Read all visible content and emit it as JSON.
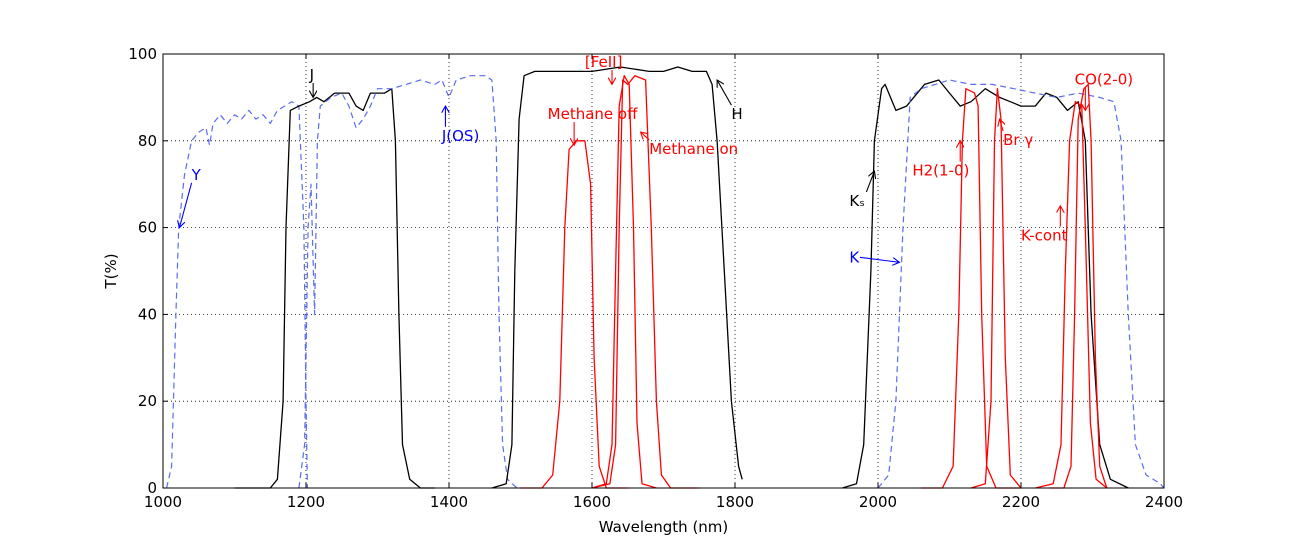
{
  "chart_data": {
    "type": "line",
    "xlabel": "Wavelength (nm)",
    "ylabel": "T(%)",
    "xlim": [
      1000,
      2400
    ],
    "ylim": [
      0,
      100
    ],
    "xticks": [
      1000,
      1200,
      1400,
      1600,
      1800,
      2000,
      2200,
      2400
    ],
    "yticks": [
      0,
      20,
      40,
      60,
      80,
      100
    ],
    "grid": true,
    "colors": {
      "black": "#000000",
      "red": "#ff0000",
      "blue": "#0000ff",
      "dashed_blue": "#5b6cf0"
    },
    "series": [
      {
        "name": "Y",
        "color": "#5b6cf0",
        "dashed": true,
        "points": [
          [
            1005,
            0
          ],
          [
            1012,
            5
          ],
          [
            1018,
            40
          ],
          [
            1022,
            60
          ],
          [
            1030,
            72
          ],
          [
            1040,
            80
          ],
          [
            1050,
            82
          ],
          [
            1060,
            83
          ],
          [
            1065,
            79
          ],
          [
            1070,
            84
          ],
          [
            1080,
            86
          ],
          [
            1090,
            84
          ],
          [
            1100,
            86
          ],
          [
            1110,
            85
          ],
          [
            1120,
            87
          ],
          [
            1130,
            85
          ],
          [
            1140,
            86
          ],
          [
            1150,
            84
          ],
          [
            1160,
            87
          ],
          [
            1170,
            88
          ],
          [
            1180,
            89
          ],
          [
            1190,
            88
          ],
          [
            1197,
            60
          ],
          [
            1200,
            20
          ],
          [
            1202,
            0
          ]
        ]
      },
      {
        "name": "J",
        "color": "#000000",
        "dashed": false,
        "points": [
          [
            1100,
            0
          ],
          [
            1150,
            0
          ],
          [
            1160,
            2
          ],
          [
            1168,
            20
          ],
          [
            1172,
            60
          ],
          [
            1178,
            87
          ],
          [
            1190,
            88
          ],
          [
            1205,
            89
          ],
          [
            1215,
            90
          ],
          [
            1225,
            89
          ],
          [
            1240,
            91
          ],
          [
            1260,
            91
          ],
          [
            1270,
            88
          ],
          [
            1280,
            87
          ],
          [
            1290,
            91
          ],
          [
            1310,
            91
          ],
          [
            1320,
            92
          ],
          [
            1325,
            80
          ],
          [
            1330,
            40
          ],
          [
            1335,
            10
          ],
          [
            1345,
            2
          ],
          [
            1360,
            0
          ],
          [
            1380,
            0
          ]
        ]
      },
      {
        "name": "J(OS)",
        "color": "#5b6cf0",
        "dashed": true,
        "points": [
          [
            1190,
            0
          ],
          [
            1198,
            10
          ],
          [
            1203,
            60
          ],
          [
            1207,
            70
          ],
          [
            1212,
            40
          ],
          [
            1216,
            80
          ],
          [
            1220,
            88
          ],
          [
            1235,
            90
          ],
          [
            1250,
            91
          ],
          [
            1260,
            88
          ],
          [
            1270,
            83
          ],
          [
            1280,
            85
          ],
          [
            1290,
            88
          ],
          [
            1300,
            92
          ],
          [
            1320,
            92
          ],
          [
            1340,
            93
          ],
          [
            1360,
            94
          ],
          [
            1380,
            93
          ],
          [
            1390,
            94
          ],
          [
            1400,
            90
          ],
          [
            1410,
            94
          ],
          [
            1430,
            95
          ],
          [
            1450,
            95
          ],
          [
            1460,
            94
          ],
          [
            1466,
            80
          ],
          [
            1470,
            40
          ],
          [
            1475,
            10
          ],
          [
            1482,
            2
          ],
          [
            1495,
            0
          ]
        ]
      },
      {
        "name": "H",
        "color": "#000000",
        "dashed": false,
        "points": [
          [
            1460,
            0
          ],
          [
            1480,
            1
          ],
          [
            1488,
            10
          ],
          [
            1492,
            50
          ],
          [
            1498,
            85
          ],
          [
            1505,
            95
          ],
          [
            1520,
            96
          ],
          [
            1560,
            96
          ],
          [
            1600,
            96
          ],
          [
            1640,
            97
          ],
          [
            1680,
            96
          ],
          [
            1700,
            96
          ],
          [
            1720,
            97
          ],
          [
            1740,
            96
          ],
          [
            1760,
            96
          ],
          [
            1768,
            93
          ],
          [
            1775,
            80
          ],
          [
            1785,
            50
          ],
          [
            1795,
            20
          ],
          [
            1805,
            5
          ],
          [
            1810,
            2
          ]
        ]
      },
      {
        "name": "Methane off",
        "color": "#ff0000",
        "dashed": false,
        "points": [
          [
            1500,
            0
          ],
          [
            1530,
            0
          ],
          [
            1545,
            3
          ],
          [
            1555,
            20
          ],
          [
            1562,
            60
          ],
          [
            1568,
            78
          ],
          [
            1578,
            80
          ],
          [
            1590,
            80
          ],
          [
            1598,
            70
          ],
          [
            1603,
            30
          ],
          [
            1610,
            5
          ],
          [
            1620,
            0
          ],
          [
            1650,
            0
          ]
        ]
      },
      {
        "name": "[FeII]",
        "color": "#ff0000",
        "dashed": false,
        "points": [
          [
            1600,
            0
          ],
          [
            1620,
            1
          ],
          [
            1628,
            10
          ],
          [
            1633,
            50
          ],
          [
            1638,
            88
          ],
          [
            1645,
            95
          ],
          [
            1652,
            93
          ],
          [
            1658,
            60
          ],
          [
            1663,
            15
          ],
          [
            1670,
            1
          ],
          [
            1690,
            0
          ]
        ]
      },
      {
        "name": "Methane on",
        "color": "#ff0000",
        "dashed": false,
        "points": [
          [
            1600,
            0
          ],
          [
            1625,
            1
          ],
          [
            1633,
            10
          ],
          [
            1638,
            60
          ],
          [
            1643,
            94
          ],
          [
            1650,
            93
          ],
          [
            1660,
            95
          ],
          [
            1675,
            94
          ],
          [
            1683,
            60
          ],
          [
            1690,
            20
          ],
          [
            1697,
            3
          ],
          [
            1710,
            0
          ],
          [
            1750,
            0
          ]
        ]
      },
      {
        "name": "Ks",
        "color": "#000000",
        "dashed": false,
        "points": [
          [
            1950,
            0
          ],
          [
            1970,
            1
          ],
          [
            1980,
            10
          ],
          [
            1990,
            50
          ],
          [
            1995,
            80
          ],
          [
            2005,
            92
          ],
          [
            2010,
            93
          ],
          [
            2025,
            87
          ],
          [
            2040,
            88
          ],
          [
            2065,
            93
          ],
          [
            2085,
            94
          ],
          [
            2100,
            91
          ],
          [
            2115,
            88
          ],
          [
            2130,
            89
          ],
          [
            2150,
            92
          ],
          [
            2170,
            90
          ],
          [
            2185,
            89
          ],
          [
            2200,
            88
          ],
          [
            2220,
            88
          ],
          [
            2235,
            91
          ],
          [
            2250,
            90
          ],
          [
            2265,
            87
          ],
          [
            2280,
            89
          ],
          [
            2290,
            80
          ],
          [
            2298,
            40
          ],
          [
            2310,
            10
          ],
          [
            2325,
            2
          ],
          [
            2350,
            0
          ]
        ]
      },
      {
        "name": "K",
        "color": "#5b6cf0",
        "dashed": true,
        "points": [
          [
            2000,
            0
          ],
          [
            2015,
            3
          ],
          [
            2025,
            20
          ],
          [
            2035,
            60
          ],
          [
            2045,
            90
          ],
          [
            2060,
            92
          ],
          [
            2080,
            93
          ],
          [
            2100,
            94
          ],
          [
            2130,
            93
          ],
          [
            2160,
            93
          ],
          [
            2190,
            92
          ],
          [
            2220,
            91
          ],
          [
            2250,
            90
          ],
          [
            2280,
            91
          ],
          [
            2310,
            90
          ],
          [
            2330,
            89
          ],
          [
            2340,
            80
          ],
          [
            2350,
            40
          ],
          [
            2360,
            10
          ],
          [
            2375,
            3
          ],
          [
            2395,
            1
          ],
          [
            2400,
            0
          ]
        ]
      },
      {
        "name": "H2(1-0)",
        "color": "#ff0000",
        "dashed": false,
        "points": [
          [
            2060,
            0
          ],
          [
            2090,
            0
          ],
          [
            2105,
            5
          ],
          [
            2113,
            40
          ],
          [
            2118,
            80
          ],
          [
            2123,
            92
          ],
          [
            2135,
            91
          ],
          [
            2140,
            88
          ],
          [
            2145,
            40
          ],
          [
            2152,
            5
          ],
          [
            2165,
            0
          ],
          [
            2200,
            0
          ]
        ]
      },
      {
        "name": "Br γ",
        "color": "#ff0000",
        "dashed": false,
        "points": [
          [
            2130,
            0
          ],
          [
            2150,
            1
          ],
          [
            2158,
            20
          ],
          [
            2163,
            80
          ],
          [
            2167,
            92
          ],
          [
            2172,
            85
          ],
          [
            2178,
            30
          ],
          [
            2185,
            3
          ],
          [
            2200,
            0
          ]
        ]
      },
      {
        "name": "K-cont",
        "color": "#ff0000",
        "dashed": false,
        "points": [
          [
            2220,
            0
          ],
          [
            2245,
            1
          ],
          [
            2256,
            10
          ],
          [
            2262,
            50
          ],
          [
            2268,
            80
          ],
          [
            2276,
            89
          ],
          [
            2285,
            88
          ],
          [
            2290,
            60
          ],
          [
            2297,
            15
          ],
          [
            2305,
            2
          ],
          [
            2320,
            0
          ]
        ]
      },
      {
        "name": "CO(2-0)",
        "color": "#ff0000",
        "dashed": false,
        "points": [
          [
            2240,
            0
          ],
          [
            2260,
            0
          ],
          [
            2270,
            5
          ],
          [
            2275,
            40
          ],
          [
            2280,
            85
          ],
          [
            2288,
            92
          ],
          [
            2294,
            93
          ],
          [
            2298,
            80
          ],
          [
            2304,
            30
          ],
          [
            2310,
            5
          ],
          [
            2320,
            0
          ]
        ]
      }
    ],
    "annotations": [
      {
        "label": "J",
        "color": "#000000",
        "text": [
          1205,
          94
        ],
        "arrow_to": [
          1210,
          90
        ]
      },
      {
        "label": "J(OS)",
        "color": "#0000ff",
        "text": [
          1390,
          80
        ],
        "arrow_to": [
          1395,
          88
        ]
      },
      {
        "label": "Y",
        "color": "#0000ff",
        "text": [
          1040,
          71
        ],
        "arrow_to": [
          1023,
          60
        ]
      },
      {
        "label": "[FeII]",
        "color": "#ff0000",
        "text": [
          1590,
          97
        ],
        "arrow_to": [
          1628,
          93
        ]
      },
      {
        "label": "Methane off",
        "color": "#ff0000",
        "text": [
          1538,
          85
        ],
        "arrow_to": [
          1575,
          79
        ]
      },
      {
        "label": "Methane on",
        "color": "#ff0000",
        "text": [
          1680,
          77
        ],
        "arrow_to": [
          1668,
          82
        ]
      },
      {
        "label": "H",
        "color": "#000000",
        "text": [
          1795,
          85
        ],
        "arrow_to": [
          1775,
          94
        ]
      },
      {
        "label": "Kₛ",
        "color": "#000000",
        "text": [
          1960,
          65
        ],
        "arrow_to": [
          1995,
          73
        ]
      },
      {
        "label": "K",
        "color": "#0000ff",
        "text": [
          1960,
          52
        ],
        "arrow_to": [
          2030,
          52
        ]
      },
      {
        "label": "H2(1-0)",
        "color": "#ff0000",
        "text": [
          2048,
          72
        ],
        "arrow_to": [
          2115,
          80
        ]
      },
      {
        "label": "Br γ",
        "color": "#ff0000",
        "text": [
          2175,
          79
        ],
        "arrow_to": [
          2170,
          85
        ]
      },
      {
        "label": "K-cont",
        "color": "#ff0000",
        "text": [
          2200,
          57
        ],
        "arrow_to": [
          2255,
          65
        ]
      },
      {
        "label": "CO(2-0)",
        "color": "#ff0000",
        "text": [
          2275,
          93
        ],
        "arrow_to": [
          2290,
          87
        ]
      }
    ]
  }
}
